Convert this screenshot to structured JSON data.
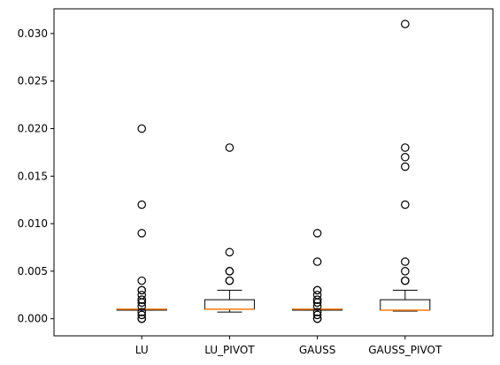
{
  "chart_data": {
    "type": "boxplot",
    "title": "",
    "xlabel": "",
    "ylabel": "",
    "ylim": [
      -0.0018,
      0.0326
    ],
    "yticks": [
      0.0,
      0.005,
      0.01,
      0.015,
      0.02,
      0.025,
      0.03
    ],
    "ytick_labels": [
      "0.000",
      "0.005",
      "0.010",
      "0.015",
      "0.020",
      "0.025",
      "0.030"
    ],
    "grid": false,
    "categories": [
      "LU",
      "LU_PIVOT",
      "GAUSS",
      "GAUSS_PIVOT"
    ],
    "boxes": [
      {
        "q1": 0.0009,
        "median": 0.001,
        "q3": 0.001,
        "whisker_low": 0.0009,
        "whisker_high": 0.001,
        "outliers": [
          0.0,
          0.0,
          0.0004,
          0.0007,
          0.0013,
          0.0017,
          0.002,
          0.002,
          0.0025,
          0.003,
          0.003,
          0.004,
          0.009,
          0.012,
          0.02
        ]
      },
      {
        "q1": 0.001,
        "median": 0.001,
        "q3": 0.002,
        "whisker_low": 0.0007,
        "whisker_high": 0.003,
        "outliers": [
          0.004,
          0.004,
          0.005,
          0.005,
          0.007,
          0.018
        ]
      },
      {
        "q1": 0.0009,
        "median": 0.001,
        "q3": 0.001,
        "whisker_low": 0.0009,
        "whisker_high": 0.001,
        "outliers": [
          0.0,
          0.0,
          0.0004,
          0.0007,
          0.0013,
          0.0017,
          0.002,
          0.002,
          0.0025,
          0.003,
          0.003,
          0.006,
          0.009
        ]
      },
      {
        "q1": 0.0009,
        "median": 0.0009,
        "q3": 0.002,
        "whisker_low": 0.0008,
        "whisker_high": 0.003,
        "outliers": [
          0.004,
          0.004,
          0.005,
          0.006,
          0.012,
          0.016,
          0.017,
          0.018,
          0.031
        ]
      }
    ],
    "colors": {
      "box": "#000000",
      "median": "#ff7f0e",
      "outlier": "#000000",
      "background": "#ffffff"
    }
  }
}
